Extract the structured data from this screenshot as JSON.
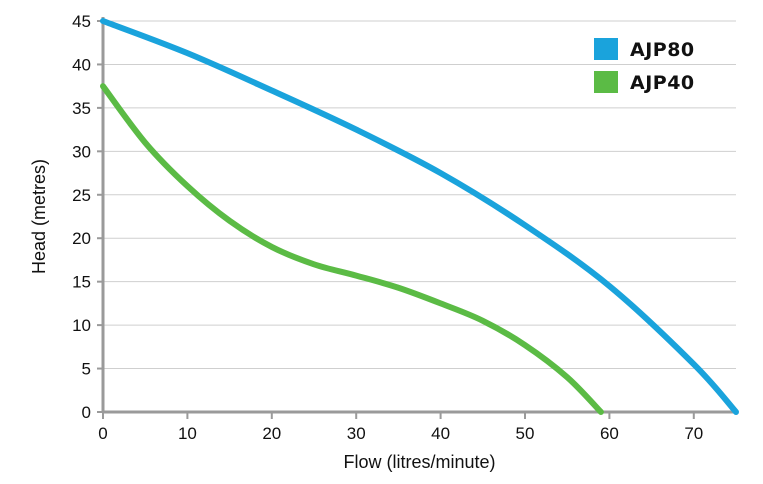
{
  "chart_data": {
    "type": "line",
    "title": "",
    "xlabel": "Flow (litres/minute)",
    "ylabel": "Head (metres)",
    "xlim": [
      0,
      75
    ],
    "ylim": [
      0,
      45
    ],
    "xticks": [
      0,
      10,
      20,
      30,
      40,
      50,
      60,
      70
    ],
    "yticks": [
      0,
      5,
      10,
      15,
      20,
      25,
      30,
      35,
      40,
      45
    ],
    "grid": "horizontal",
    "legend_position": "top-right",
    "series": [
      {
        "name": "AJP80",
        "color": "#1aa3dc",
        "x": [
          0,
          10,
          20,
          30,
          40,
          50,
          60,
          70,
          75
        ],
        "y": [
          45,
          41.3,
          37,
          32.5,
          27.5,
          21.5,
          14.5,
          5.5,
          0
        ]
      },
      {
        "name": "AJP40",
        "color": "#5bbb45",
        "x": [
          0,
          5,
          10,
          15,
          20,
          25,
          30,
          35,
          40,
          45,
          50,
          55,
          59
        ],
        "y": [
          37.5,
          31,
          26,
          22,
          19,
          17,
          15.7,
          14.3,
          12.5,
          10.5,
          7.7,
          4,
          0
        ]
      }
    ]
  }
}
